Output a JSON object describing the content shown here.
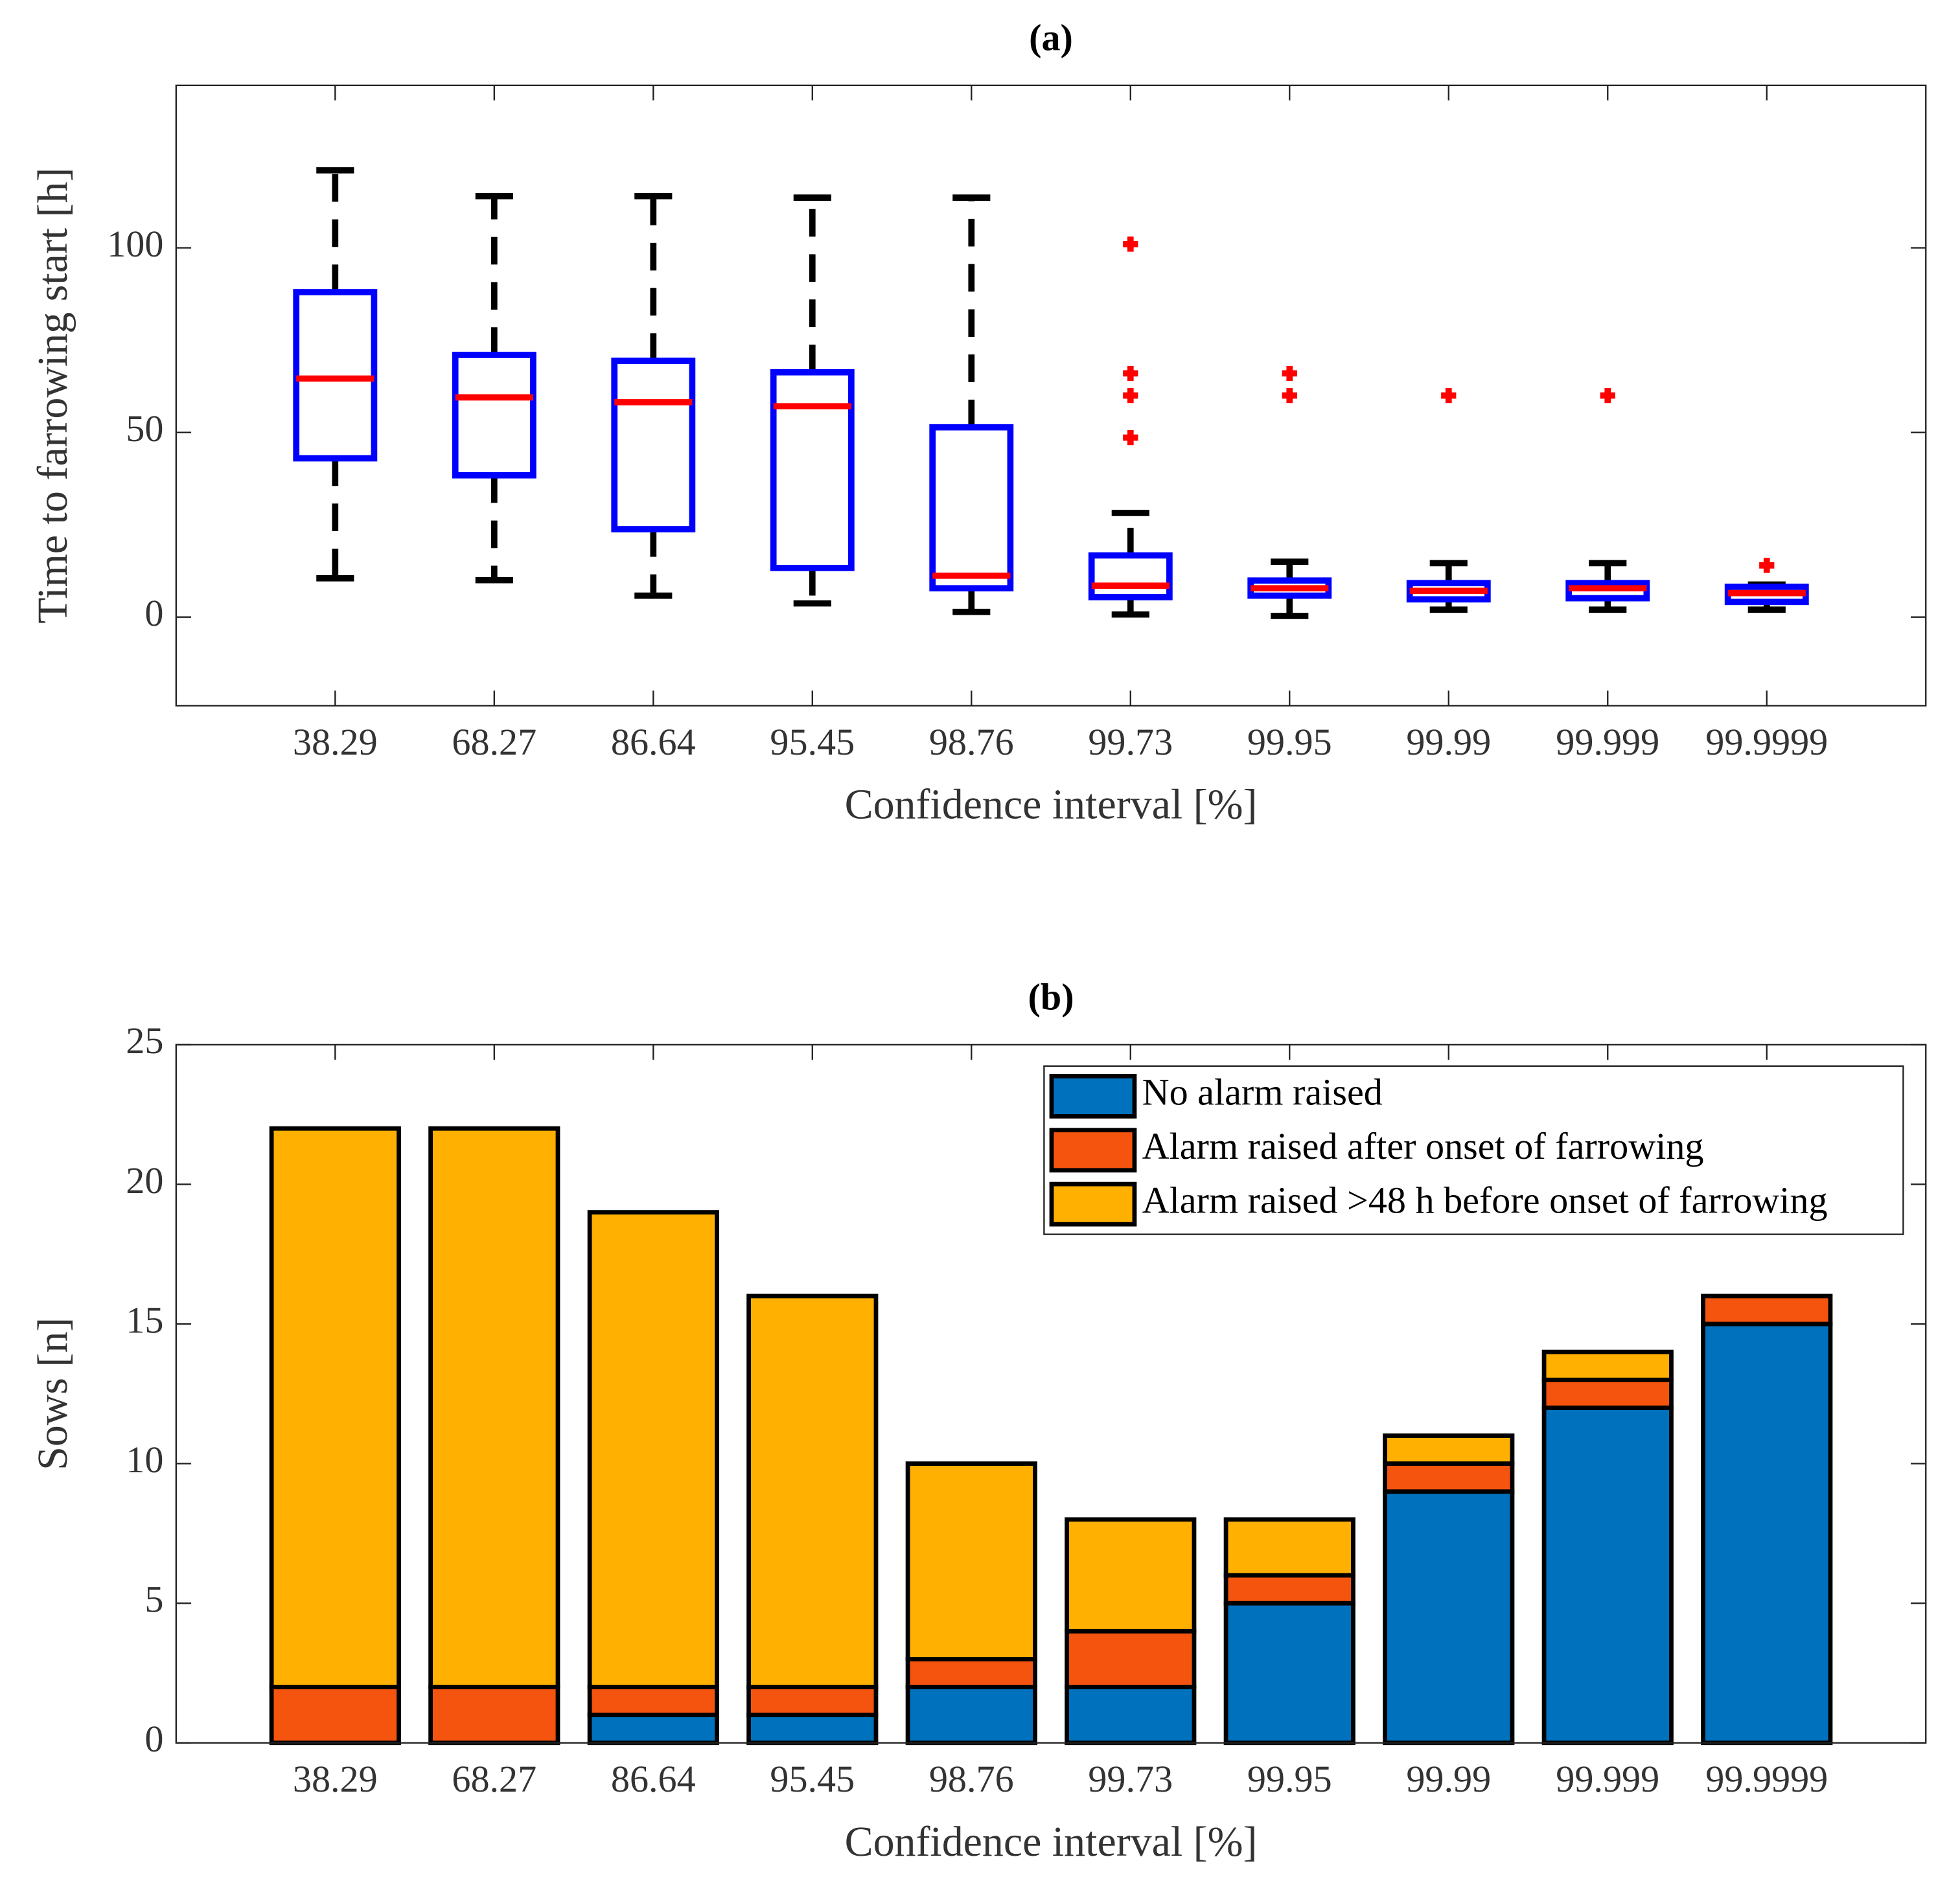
{
  "chart_data": [
    {
      "type": "box",
      "title": "(a)",
      "x_label": "Confidence interval [%]",
      "y_label": "Time to farrowing start [h]",
      "categories": [
        "38.29",
        "68.27",
        "86.64",
        "95.45",
        "98.76",
        "99.73",
        "99.95",
        "99.99",
        "99.999",
        "99.9999"
      ],
      "boxes": [
        {
          "whisker_low": 10.5,
          "q1": 43,
          "median": 64.6,
          "q3": 88,
          "whisker_high": 121,
          "outliers": []
        },
        {
          "whisker_low": 10,
          "q1": 38.4,
          "median": 59.5,
          "q3": 71,
          "whisker_high": 114,
          "outliers": []
        },
        {
          "whisker_low": 5.8,
          "q1": 23.8,
          "median": 58.2,
          "q3": 69.4,
          "whisker_high": 114,
          "outliers": []
        },
        {
          "whisker_low": 3.7,
          "q1": 13.3,
          "median": 57.1,
          "q3": 66.3,
          "whisker_high": 113.6,
          "outliers": []
        },
        {
          "whisker_low": 1.4,
          "q1": 7.8,
          "median": 11.2,
          "q3": 51.4,
          "whisker_high": 113.6,
          "outliers": []
        },
        {
          "whisker_low": 0.7,
          "q1": 5.4,
          "median": 8.5,
          "q3": 16.7,
          "whisker_high": 28.2,
          "outliers": [
            101,
            66,
            60,
            48.6
          ]
        },
        {
          "whisker_low": 0.3,
          "q1": 5.8,
          "median": 7.8,
          "q3": 9.9,
          "whisker_high": 15,
          "outliers": [
            66,
            60
          ]
        },
        {
          "whisker_low": 2,
          "q1": 4.8,
          "median": 7.1,
          "q3": 9.2,
          "whisker_high": 14.6,
          "outliers": [
            60
          ]
        },
        {
          "whisker_low": 2,
          "q1": 5.1,
          "median": 7.8,
          "q3": 9.2,
          "whisker_high": 14.6,
          "outliers": [
            60
          ]
        },
        {
          "whisker_low": 2,
          "q1": 4.1,
          "median": 6.5,
          "q3": 8.2,
          "whisker_high": 8.8,
          "outliers": [
            14
          ]
        }
      ],
      "box_color": "#0000ff",
      "median_color": "#ff0000",
      "whisker_color": "#000000",
      "outlier_color": "#ff0000",
      "ylim": [
        -24,
        144
      ],
      "yticks": [
        0,
        50,
        100
      ]
    },
    {
      "type": "stacked-bar",
      "title": "(b)",
      "x_label": "Confidence interval [%]",
      "y_label": "Sows [n]",
      "categories": [
        "38.29",
        "68.27",
        "86.64",
        "95.45",
        "98.76",
        "99.73",
        "99.95",
        "99.99",
        "99.999",
        "99.9999"
      ],
      "series": [
        {
          "name": "No alarm raised",
          "color": "#0072bd",
          "values": [
            0,
            0,
            1,
            1,
            2,
            2,
            5,
            9,
            12,
            15
          ]
        },
        {
          "name": "Alarm raised after onset of farrowing",
          "color": "#f5540e",
          "values": [
            2,
            2,
            1,
            1,
            1,
            2,
            1,
            1,
            1,
            1
          ]
        },
        {
          "name": "Alarm raised >48 h before onset of farrowing",
          "color": "#ffb000",
          "values": [
            20,
            20,
            17,
            14,
            7,
            4,
            2,
            1,
            1,
            0
          ]
        }
      ],
      "ylim": [
        0,
        25
      ],
      "yticks": [
        0,
        5,
        10,
        15,
        20,
        25
      ],
      "legend": "upper right"
    }
  ]
}
